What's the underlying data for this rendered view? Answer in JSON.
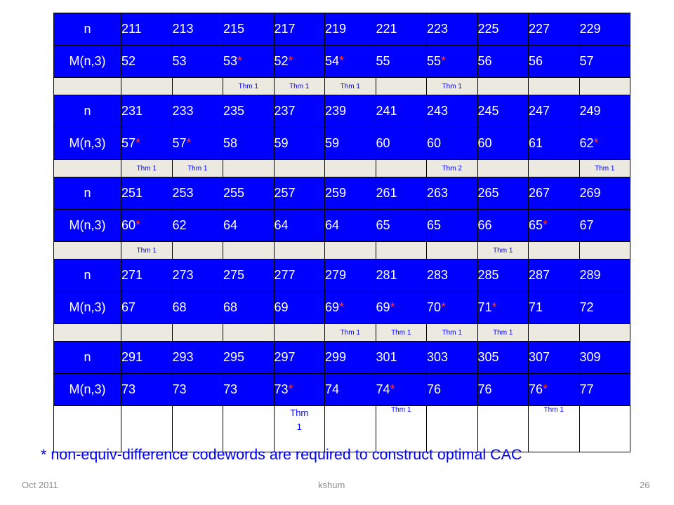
{
  "table": {
    "row_label_n": "n",
    "row_label_m": "M(n,3)",
    "groups": [
      {
        "n": [
          "211",
          "213",
          "215",
          "217",
          "219",
          "221",
          "223",
          "225",
          "227",
          "229"
        ],
        "m": [
          {
            "v": "52",
            "s": false
          },
          {
            "v": "53",
            "s": false
          },
          {
            "v": "53",
            "s": true
          },
          {
            "v": "52",
            "s": true
          },
          {
            "v": "54",
            "s": true
          },
          {
            "v": "55",
            "s": false
          },
          {
            "v": "55",
            "s": true
          },
          {
            "v": "56",
            "s": false
          },
          {
            "v": "56",
            "s": false
          },
          {
            "v": "57",
            "s": false
          }
        ],
        "t": [
          "",
          "",
          "Thm 1",
          "Thm 1",
          "Thm 1",
          "",
          "Thm 1",
          "",
          "",
          ""
        ]
      },
      {
        "n": [
          "231",
          "233",
          "235",
          "237",
          "239",
          "241",
          "243",
          "245",
          "247",
          "249"
        ],
        "m": [
          {
            "v": "57",
            "s": true
          },
          {
            "v": "57",
            "s": true
          },
          {
            "v": "58",
            "s": false
          },
          {
            "v": "59",
            "s": false
          },
          {
            "v": "59",
            "s": false
          },
          {
            "v": "60",
            "s": false
          },
          {
            "v": "60",
            "s": false
          },
          {
            "v": "60",
            "s": false
          },
          {
            "v": "61",
            "s": false
          },
          {
            "v": "62",
            "s": true
          }
        ],
        "t": [
          "Thm 1",
          "Thm 1",
          "",
          "",
          "",
          "",
          "Thm 2",
          "",
          "",
          "Thm 1"
        ]
      },
      {
        "n": [
          "251",
          "253",
          "255",
          "257",
          "259",
          "261",
          "263",
          "265",
          "267",
          "269"
        ],
        "m": [
          {
            "v": "60",
            "s": true
          },
          {
            "v": "62",
            "s": false
          },
          {
            "v": "64",
            "s": false
          },
          {
            "v": "64",
            "s": false
          },
          {
            "v": "64",
            "s": false
          },
          {
            "v": "65",
            "s": false
          },
          {
            "v": "65",
            "s": false
          },
          {
            "v": "66",
            "s": false
          },
          {
            "v": "65",
            "s": true
          },
          {
            "v": "67",
            "s": false
          }
        ],
        "t": [
          "Thm 1",
          "",
          "",
          "",
          "",
          "",
          "",
          "Thm 1",
          "",
          ""
        ]
      },
      {
        "n": [
          "271",
          "273",
          "275",
          "277",
          "279",
          "281",
          "283",
          "285",
          "287",
          "289"
        ],
        "m": [
          {
            "v": "67",
            "s": false
          },
          {
            "v": "68",
            "s": false
          },
          {
            "v": "68",
            "s": false
          },
          {
            "v": "69",
            "s": false
          },
          {
            "v": "69",
            "s": true
          },
          {
            "v": "69",
            "s": true
          },
          {
            "v": "70",
            "s": true
          },
          {
            "v": "71",
            "s": true
          },
          {
            "v": "71",
            "s": false
          },
          {
            "v": "72",
            "s": false
          }
        ],
        "t": [
          "",
          "",
          "",
          "",
          "Thm 1",
          "Thm 1",
          "Thm 1",
          "Thm 1",
          "",
          ""
        ]
      },
      {
        "n": [
          "291",
          "293",
          "295",
          "297",
          "299",
          "301",
          "303",
          "305",
          "307",
          "309"
        ],
        "m": [
          {
            "v": "73",
            "s": false
          },
          {
            "v": "73",
            "s": false
          },
          {
            "v": "73",
            "s": false
          },
          {
            "v": "73",
            "s": true
          },
          {
            "v": "74",
            "s": false
          },
          {
            "v": "74",
            "s": true
          },
          {
            "v": "76",
            "s": false
          },
          {
            "v": "76",
            "s": false
          },
          {
            "v": "76",
            "s": true
          },
          {
            "v": "77",
            "s": false
          }
        ],
        "t": [
          "",
          "",
          "",
          "Thm\n1",
          "",
          "Thm 1",
          "",
          "",
          "Thm 1",
          ""
        ]
      }
    ]
  },
  "footnote": "* non-equiv-difference codewords are required to construct optimal CAC",
  "star_symbol": "*",
  "footer": {
    "date": "Oct 2011",
    "author": "kshum",
    "page": "26"
  },
  "colors": {
    "header_blue": "#0000ff",
    "thm_row_bg": "#eceae0",
    "star_red": "#ff3b30",
    "footnote_blue": "#0000ff",
    "footer_gray": "#8c8c8c"
  }
}
